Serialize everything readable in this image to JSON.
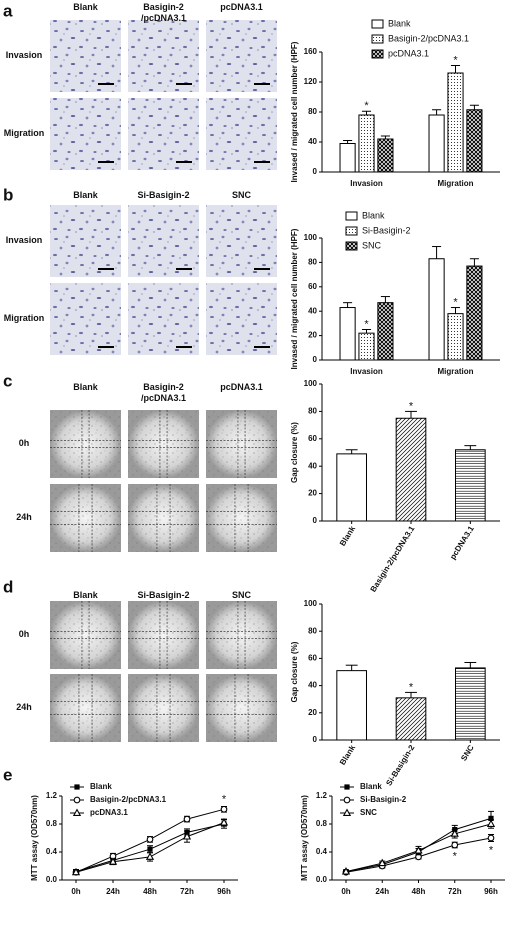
{
  "figure": {
    "panel_labels": [
      "a",
      "b",
      "c",
      "d",
      "e"
    ],
    "micrographs": [
      {
        "columns": [
          "Blank",
          "Basigin-2 /pcDNA3.1",
          "pcDNA3.1"
        ],
        "rows": [
          "Invasion",
          "Migration"
        ]
      },
      {
        "columns": [
          "Blank",
          "Si-Basigin-2",
          "SNC"
        ],
        "rows": [
          "Invasion",
          "Migration"
        ]
      },
      {
        "columns": [
          "Blank",
          "Basigin-2 /pcDNA3.1",
          "pcDNA3.1"
        ],
        "rows": [
          "0h",
          "24h"
        ]
      },
      {
        "columns": [
          "Blank",
          "Si-Basigin-2",
          "SNC"
        ],
        "rows": [
          "0h",
          "24h"
        ]
      }
    ]
  },
  "chart_data": [
    {
      "type": "bar",
      "y_label": "Invased / migrated cell number (HPF)",
      "categories": [
        "Invasion",
        "Migration"
      ],
      "series": [
        {
          "name": "Blank",
          "color": "#000000",
          "pattern": "none",
          "values": [
            38,
            76
          ],
          "errors": [
            4,
            7
          ]
        },
        {
          "name": "Basigin-2/pcDNA3.1",
          "color": "#000000",
          "pattern": "dots",
          "values": [
            76,
            132
          ],
          "errors": [
            5,
            10
          ],
          "significance": [
            "*",
            "*"
          ]
        },
        {
          "name": "pcDNA3.1",
          "color": "#000000",
          "pattern": "checker",
          "values": [
            44,
            83
          ],
          "errors": [
            4,
            6
          ]
        }
      ],
      "ylim": [
        0,
        160
      ],
      "yticks": [
        0,
        40,
        80,
        120,
        160
      ],
      "legend": "top-right"
    },
    {
      "type": "bar",
      "y_label": "Invased / migrated cell number (HPF)",
      "categories": [
        "Invasion",
        "Migration"
      ],
      "series": [
        {
          "name": "Blank",
          "color": "#000000",
          "pattern": "none",
          "values": [
            43,
            83
          ],
          "errors": [
            4,
            10
          ]
        },
        {
          "name": "Si-Basigin-2",
          "color": "#000000",
          "pattern": "dots",
          "values": [
            22,
            38
          ],
          "errors": [
            3,
            5
          ],
          "significance": [
            "*",
            "*"
          ]
        },
        {
          "name": "SNC",
          "color": "#000000",
          "pattern": "checker",
          "values": [
            47,
            77
          ],
          "errors": [
            5,
            6
          ]
        }
      ],
      "ylim": [
        0,
        100
      ],
      "yticks": [
        0,
        20,
        40,
        60,
        80,
        100
      ],
      "legend": "top-right"
    },
    {
      "type": "bar",
      "y_label": "Gap closure (%)",
      "categories": [
        "Blank",
        "Basigin-2/pcDNA3.1",
        "pcDNA3.1"
      ],
      "values": [
        49,
        75,
        52
      ],
      "errors": [
        3,
        5,
        3
      ],
      "significance": [
        null,
        "*",
        null
      ],
      "color": "#000000",
      "patterns": [
        "none",
        "diagonal",
        "horizontal"
      ],
      "ylim": [
        0,
        100
      ],
      "yticks": [
        0,
        20,
        40,
        60,
        80,
        100
      ]
    },
    {
      "type": "bar",
      "y_label": "Gap closure (%)",
      "categories": [
        "Blank",
        "Si-Basigin-2",
        "SNC"
      ],
      "values": [
        51,
        31,
        53
      ],
      "errors": [
        4,
        4,
        4
      ],
      "significance": [
        null,
        "*",
        null
      ],
      "color": "#000000",
      "patterns": [
        "none",
        "diagonal",
        "horizontal"
      ],
      "ylim": [
        0,
        100
      ],
      "yticks": [
        0,
        20,
        40,
        60,
        80,
        100
      ]
    },
    {
      "type": "line",
      "y_label": "MTT assay (OD570nm)",
      "categories": [
        "0h",
        "24h",
        "48h",
        "72h",
        "96h"
      ],
      "series": [
        {
          "name": "Blank",
          "color": "#000000",
          "marker": "square",
          "values": [
            0.12,
            0.28,
            0.44,
            0.68,
            0.8
          ],
          "errors": [
            0.03,
            0.03,
            0.05,
            0.05,
            0.06
          ]
        },
        {
          "name": "Basigin-2/pcDNA3.1",
          "color": "#000000",
          "marker": "circle",
          "values": [
            0.11,
            0.34,
            0.58,
            0.87,
            1.01
          ],
          "errors": [
            0.03,
            0.04,
            0.04,
            0.04,
            0.04
          ],
          "significance": [
            null,
            null,
            null,
            null,
            "*"
          ]
        },
        {
          "name": "pcDNA3.1",
          "color": "#000000",
          "marker": "triangle",
          "values": [
            0.11,
            0.26,
            0.33,
            0.62,
            0.82
          ],
          "errors": [
            0.03,
            0.04,
            0.06,
            0.08,
            0.05
          ]
        }
      ],
      "ylim": [
        0,
        1.2
      ],
      "yticks": [
        {
          "value": 0,
          "label": "0.0"
        },
        0.4,
        0.8,
        1.2
      ],
      "legend": "top-left"
    },
    {
      "type": "line",
      "y_label": "MTT assay (OD570nm)",
      "categories": [
        "0h",
        "24h",
        "48h",
        "72h",
        "96h"
      ],
      "series": [
        {
          "name": "Blank",
          "color": "#000000",
          "marker": "square",
          "values": [
            0.12,
            0.22,
            0.4,
            0.72,
            0.88
          ],
          "errors": [
            0.02,
            0.03,
            0.05,
            0.06,
            0.1
          ]
        },
        {
          "name": "Si-Basigin-2",
          "color": "#000000",
          "marker": "circle",
          "values": [
            0.11,
            0.2,
            0.33,
            0.5,
            0.6
          ],
          "errors": [
            0.02,
            0.03,
            0.03,
            0.04,
            0.05
          ],
          "significance": [
            null,
            null,
            null,
            "*",
            "*"
          ]
        },
        {
          "name": "SNC",
          "color": "#000000",
          "marker": "triangle",
          "values": [
            0.12,
            0.24,
            0.42,
            0.66,
            0.8
          ],
          "errors": [
            0.02,
            0.03,
            0.06,
            0.06,
            0.06
          ]
        }
      ],
      "ylim": [
        0,
        1.2
      ],
      "yticks": [
        {
          "value": 0,
          "label": "0.0"
        },
        0.4,
        0.8,
        1.2
      ],
      "legend": "top-left"
    }
  ]
}
